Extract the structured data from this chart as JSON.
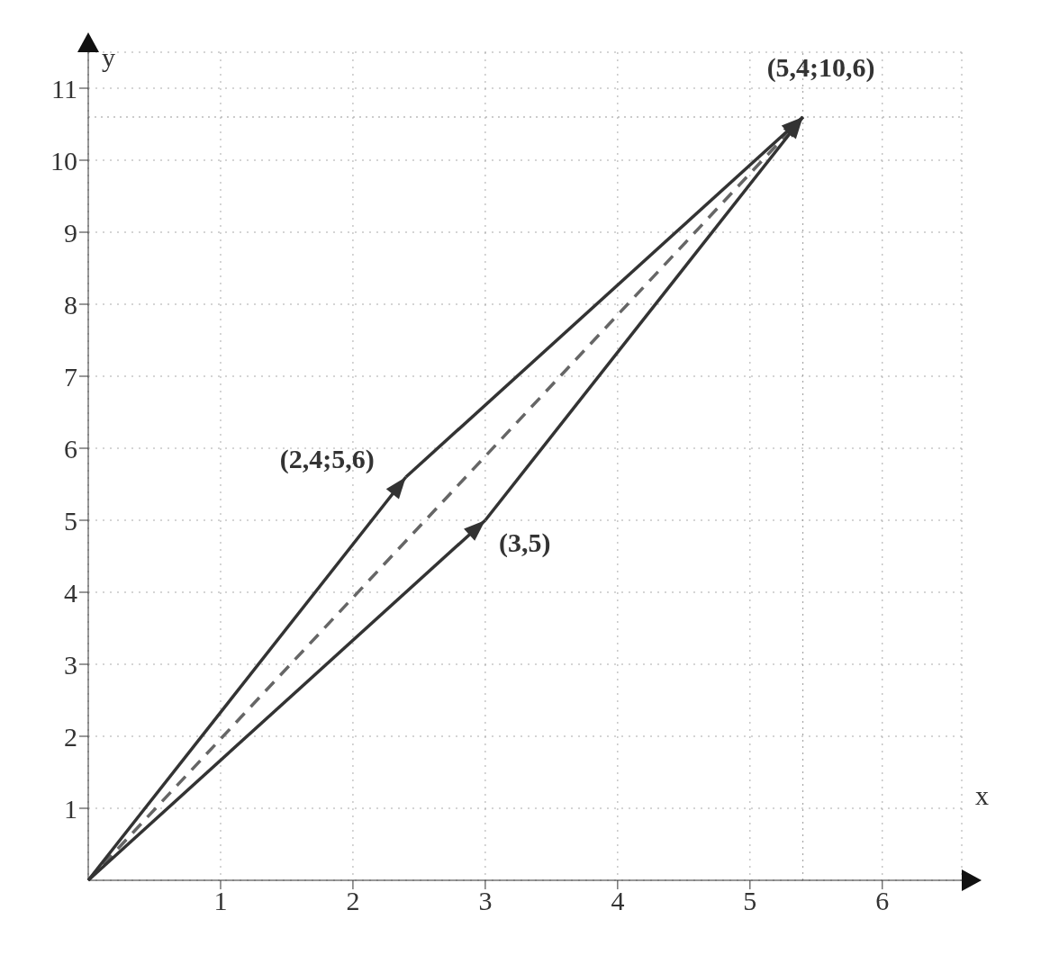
{
  "chart_data": {
    "type": "line",
    "xlabel": "x",
    "ylabel": "y",
    "xlim": [
      0,
      6.6
    ],
    "ylim": [
      0,
      11.5
    ],
    "xticks": [
      1,
      2,
      3,
      4,
      5,
      6
    ],
    "yticks": [
      1,
      2,
      3,
      4,
      5,
      6,
      7,
      8,
      9,
      10,
      11
    ],
    "grid": true,
    "marker": "none",
    "series": [
      {
        "x": [
          0,
          2.4
        ],
        "values": [
          0,
          5.6
        ],
        "color": "#333333",
        "line_style": "solid"
      },
      {
        "x": [
          2.4,
          5.4
        ],
        "values": [
          5.6,
          10.6
        ],
        "color": "#333333",
        "line_style": "solid"
      },
      {
        "x": [
          0,
          3
        ],
        "values": [
          0,
          5
        ],
        "color": "#333333",
        "line_style": "solid"
      },
      {
        "x": [
          3,
          5.4
        ],
        "values": [
          5,
          10.6
        ],
        "color": "#333333",
        "line_style": "solid"
      },
      {
        "x": [
          0,
          5.4
        ],
        "values": [
          0,
          10.6
        ],
        "color": "#666666",
        "line_style": "dashed"
      }
    ],
    "ref_lines": [
      {
        "axis": "x",
        "value": 5.4,
        "line_style": "dotted",
        "color": "#999999"
      },
      {
        "axis": "y",
        "value": 10.6,
        "line_style": "dotted",
        "color": "#999999"
      }
    ],
    "annotations": [
      {
        "text": "(2,4;5,6)",
        "x": 2.4,
        "y": 5.6
      },
      {
        "text": "(3,5)",
        "x": 3,
        "y": 5
      },
      {
        "text": "(5,4;10,6)",
        "x": 5.4,
        "y": 10.6
      }
    ]
  }
}
